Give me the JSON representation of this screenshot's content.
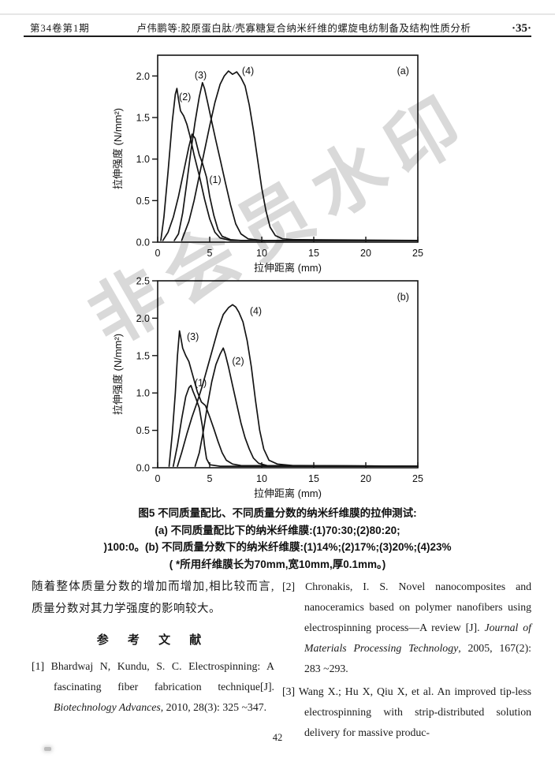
{
  "header": {
    "issue": "第34卷第1期",
    "title": "卢伟鹏等:胶原蛋白肽/壳寡糖复合纳米纤维的螺旋电纺制备及结构性质分析",
    "page_marker": "·35·"
  },
  "watermark": {
    "text": "非会员水印"
  },
  "figure_caption": {
    "line1": "图5  不同质量配比、不同质量分数的纳米纤维膜的拉伸测试:",
    "line2": "(a) 不同质量配比下的纳米纤维膜:(1)70:30;(2)80:20;",
    "line3": ")100:0。(b) 不同质量分数下的纳米纤维膜:(1)14%;(2)17%;(3)20%;(4)23%",
    "line4": "( *所用纤维膜长为70mm,宽10mm,厚0.1mm。)"
  },
  "chart_data": [
    {
      "id": "a",
      "type": "line",
      "panel": "(a)",
      "panel_label_pos": [
        23.0,
        2.02
      ],
      "xlabel": "拉伸距离 (mm)",
      "ylabel": "拉伸强度 (N/mm²)",
      "xlim": [
        0,
        25
      ],
      "ylim": [
        0,
        2.25
      ],
      "xticks": [
        0,
        5,
        10,
        15,
        20,
        25
      ],
      "xtick_labels": [
        "0",
        "5",
        "10",
        "15",
        "20",
        "25"
      ],
      "yticks": [
        0,
        0.5,
        1.0,
        1.5,
        2.0
      ],
      "ytick_labels": [
        "0.0",
        "0.5",
        "1.0",
        "1.5",
        "2.0"
      ],
      "series": [
        {
          "name": "(1)",
          "label_pos": [
            4.95,
            0.71
          ],
          "points": [
            [
              0.5,
              0.02
            ],
            [
              1,
              0.12
            ],
            [
              1.5,
              0.3
            ],
            [
              2,
              0.55
            ],
            [
              2.5,
              0.85
            ],
            [
              3,
              1.15
            ],
            [
              3.3,
              1.3
            ],
            [
              3.6,
              1.25
            ],
            [
              4,
              1.05
            ],
            [
              4.3,
              0.95
            ],
            [
              4.7,
              0.78
            ],
            [
              5,
              0.55
            ],
            [
              5.4,
              0.32
            ],
            [
              5.8,
              0.15
            ],
            [
              6.2,
              0.07
            ],
            [
              7,
              0.03
            ],
            [
              8,
              0.02
            ],
            [
              25,
              0.02
            ]
          ]
        },
        {
          "name": "(2)",
          "label_pos": [
            2.05,
            1.71
          ],
          "points": [
            [
              0.3,
              0.02
            ],
            [
              0.6,
              0.3
            ],
            [
              1,
              0.85
            ],
            [
              1.4,
              1.45
            ],
            [
              1.7,
              1.78
            ],
            [
              1.85,
              1.85
            ],
            [
              2,
              1.72
            ],
            [
              2.2,
              1.58
            ],
            [
              2.5,
              1.52
            ],
            [
              2.8,
              1.42
            ],
            [
              3.1,
              1.28
            ],
            [
              3.5,
              1.05
            ],
            [
              4,
              0.8
            ],
            [
              4.5,
              0.52
            ],
            [
              5,
              0.28
            ],
            [
              5.5,
              0.12
            ],
            [
              6,
              0.05
            ],
            [
              7,
              0.02
            ],
            [
              25,
              0.02
            ]
          ]
        },
        {
          "name": "(3)",
          "label_pos": [
            3.55,
            1.97
          ],
          "points": [
            [
              1.6,
              0.02
            ],
            [
              2,
              0.1
            ],
            [
              2.4,
              0.35
            ],
            [
              2.8,
              0.72
            ],
            [
              3.2,
              1.1
            ],
            [
              3.6,
              1.45
            ],
            [
              4,
              1.75
            ],
            [
              4.3,
              1.92
            ],
            [
              4.5,
              1.85
            ],
            [
              4.8,
              1.68
            ],
            [
              5.2,
              1.45
            ],
            [
              5.6,
              1.22
            ],
            [
              6,
              1.0
            ],
            [
              6.5,
              0.72
            ],
            [
              7,
              0.45
            ],
            [
              7.5,
              0.22
            ],
            [
              8,
              0.1
            ],
            [
              8.7,
              0.04
            ],
            [
              10,
              0.02
            ],
            [
              25,
              0.02
            ]
          ]
        },
        {
          "name": "(4)",
          "label_pos": [
            8.1,
            2.02
          ],
          "points": [
            [
              2.3,
              0.02
            ],
            [
              3,
              0.25
            ],
            [
              3.5,
              0.5
            ],
            [
              4,
              0.8
            ],
            [
              4.5,
              1.1
            ],
            [
              5,
              1.4
            ],
            [
              5.5,
              1.68
            ],
            [
              6,
              1.9
            ],
            [
              6.4,
              2.0
            ],
            [
              6.8,
              2.06
            ],
            [
              7.2,
              2.02
            ],
            [
              7.6,
              2.05
            ],
            [
              8,
              1.98
            ],
            [
              8.4,
              1.88
            ],
            [
              8.8,
              1.65
            ],
            [
              9.2,
              1.35
            ],
            [
              9.6,
              1.0
            ],
            [
              10,
              0.65
            ],
            [
              10.4,
              0.38
            ],
            [
              10.8,
              0.18
            ],
            [
              11.3,
              0.08
            ],
            [
              12,
              0.04
            ],
            [
              13,
              0.03
            ],
            [
              25,
              0.02
            ]
          ]
        }
      ]
    },
    {
      "id": "b",
      "type": "line",
      "panel": "(b)",
      "panel_label_pos": [
        23.0,
        2.24
      ],
      "xlabel": "拉伸距离 (mm)",
      "ylabel": "拉伸强度 (N/mm²)",
      "xlim": [
        0,
        25
      ],
      "ylim": [
        0,
        2.5
      ],
      "xticks": [
        0,
        5,
        10,
        15,
        20,
        25
      ],
      "xtick_labels": [
        "0",
        "5",
        "10",
        "15",
        "20",
        "25"
      ],
      "yticks": [
        0,
        0.5,
        1.0,
        1.5,
        2.0,
        2.5
      ],
      "ytick_labels": [
        "0.0",
        "0.5",
        "1.0",
        "1.5",
        "2.0",
        "2.5"
      ],
      "series": [
        {
          "name": "(1)",
          "label_pos": [
            3.55,
            1.09
          ],
          "points": [
            [
              1.5,
              0.02
            ],
            [
              1.9,
              0.3
            ],
            [
              2.3,
              0.65
            ],
            [
              2.7,
              0.95
            ],
            [
              3,
              1.07
            ],
            [
              3.2,
              1.1
            ],
            [
              3.4,
              1.02
            ],
            [
              3.7,
              0.92
            ],
            [
              4,
              0.8
            ],
            [
              4.3,
              0.55
            ],
            [
              4.5,
              0.3
            ],
            [
              4.7,
              0.12
            ],
            [
              5,
              0.04
            ],
            [
              6,
              0.02
            ],
            [
              25,
              0.02
            ]
          ]
        },
        {
          "name": "(2)",
          "label_pos": [
            7.15,
            1.38
          ],
          "points": [
            [
              3.6,
              0.02
            ],
            [
              4,
              0.2
            ],
            [
              4.4,
              0.5
            ],
            [
              4.8,
              0.85
            ],
            [
              5.2,
              1.15
            ],
            [
              5.6,
              1.38
            ],
            [
              6,
              1.52
            ],
            [
              6.3,
              1.6
            ],
            [
              6.5,
              1.52
            ],
            [
              6.8,
              1.35
            ],
            [
              7.2,
              1.1
            ],
            [
              7.6,
              0.85
            ],
            [
              8,
              0.6
            ],
            [
              8.4,
              0.4
            ],
            [
              8.8,
              0.25
            ],
            [
              9.2,
              0.13
            ],
            [
              9.7,
              0.06
            ],
            [
              10.5,
              0.03
            ],
            [
              25,
              0.02
            ]
          ]
        },
        {
          "name": "(3)",
          "label_pos": [
            2.8,
            1.71
          ],
          "points": [
            [
              1.1,
              0.02
            ],
            [
              1.4,
              0.45
            ],
            [
              1.7,
              1.0
            ],
            [
              1.9,
              1.5
            ],
            [
              2.1,
              1.83
            ],
            [
              2.25,
              1.72
            ],
            [
              2.4,
              1.6
            ],
            [
              2.7,
              1.5
            ],
            [
              3,
              1.42
            ],
            [
              3.4,
              1.22
            ],
            [
              3.8,
              1.02
            ],
            [
              4.2,
              0.88
            ],
            [
              4.6,
              0.83
            ],
            [
              5,
              0.68
            ],
            [
              5.4,
              0.52
            ],
            [
              5.8,
              0.35
            ],
            [
              6.2,
              0.2
            ],
            [
              6.6,
              0.1
            ],
            [
              7.2,
              0.05
            ],
            [
              8,
              0.03
            ],
            [
              25,
              0.02
            ]
          ]
        },
        {
          "name": "(4)",
          "label_pos": [
            8.85,
            2.05
          ],
          "points": [
            [
              1.9,
              0.02
            ],
            [
              2.3,
              0.2
            ],
            [
              2.8,
              0.45
            ],
            [
              3.3,
              0.68
            ],
            [
              3.8,
              0.88
            ],
            [
              4.3,
              1.1
            ],
            [
              4.8,
              1.35
            ],
            [
              5.3,
              1.6
            ],
            [
              5.8,
              1.85
            ],
            [
              6.3,
              2.05
            ],
            [
              6.8,
              2.14
            ],
            [
              7.2,
              2.18
            ],
            [
              7.5,
              2.15
            ],
            [
              7.8,
              2.08
            ],
            [
              8.2,
              1.95
            ],
            [
              8.6,
              1.7
            ],
            [
              9,
              1.35
            ],
            [
              9.4,
              0.9
            ],
            [
              9.8,
              0.5
            ],
            [
              10.2,
              0.25
            ],
            [
              10.7,
              0.1
            ],
            [
              11.5,
              0.05
            ],
            [
              13,
              0.03
            ],
            [
              25,
              0.02
            ]
          ]
        }
      ]
    }
  ],
  "body": {
    "paragraph": "随着整体质量分数的增加而增加,相比较而言,质量分数对其力学强度的影响较大。",
    "references_heading": "参 考 文 献"
  },
  "references": [
    {
      "id": "[1]",
      "segments": [
        {
          "t": "Bhardwaj N, Kundu, S. C. Electrospinning: A fascinating fiber fabrication technique[J]. ",
          "i": false
        },
        {
          "t": "Biotechnology Advances",
          "i": true
        },
        {
          "t": ", 2010, 28(3): 325 ~347.",
          "i": false
        }
      ]
    },
    {
      "id": "[2]",
      "segments": [
        {
          "t": "Chronakis, I. S. Novel nanocomposites and nanoceramics based on polymer nanofibers using electrospinning process—A review [J]. ",
          "i": false
        },
        {
          "t": "Journal of Materials Processing Technology",
          "i": true
        },
        {
          "t": ", 2005, 167(2): 283 ~293.",
          "i": false
        }
      ]
    },
    {
      "id": "[3]",
      "segments": [
        {
          "t": "Wang X.; Hu X, Qiu X, et al. An improved tip-less electrospinning with strip-distributed solution delivery for massive produc-",
          "i": false
        }
      ]
    }
  ],
  "page": {
    "number": "42"
  }
}
